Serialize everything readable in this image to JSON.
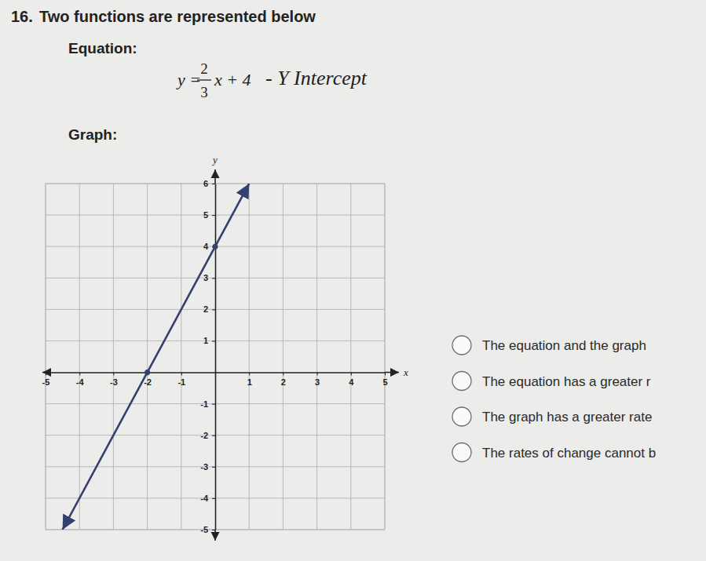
{
  "question": {
    "number": "16.",
    "text": "Two functions are represented below"
  },
  "equation_label": "Equation:",
  "equation": {
    "lhs": "y =",
    "numerator": "2",
    "denominator": "3",
    "rhs": "x + 4"
  },
  "handwritten_note": "- Y Intercept",
  "graph_label": "Graph:",
  "choices": [
    "The equation and the graph",
    "The equation has a greater r",
    "The graph has a greater rate",
    "The rates of change cannot b"
  ],
  "chart_data": {
    "type": "line",
    "x_label": "x",
    "y_label": "y",
    "xlim": [
      -5,
      5
    ],
    "ylim": [
      -5,
      6
    ],
    "xticks": [
      -5,
      -4,
      -3,
      -2,
      -1,
      1,
      2,
      3,
      4,
      5
    ],
    "yticks": [
      -5,
      -4,
      -3,
      -2,
      -1,
      1,
      2,
      3,
      4,
      5,
      6
    ],
    "grid": true,
    "series": [
      {
        "type": "line",
        "color": "#34406e",
        "line_style": "solid",
        "x": [
          -4.5,
          1
        ],
        "values": [
          -5,
          6
        ]
      },
      {
        "type": "scatter",
        "color": "#34406e",
        "marker": "circle",
        "x": [
          -2,
          0
        ],
        "values": [
          0,
          4
        ]
      }
    ]
  }
}
